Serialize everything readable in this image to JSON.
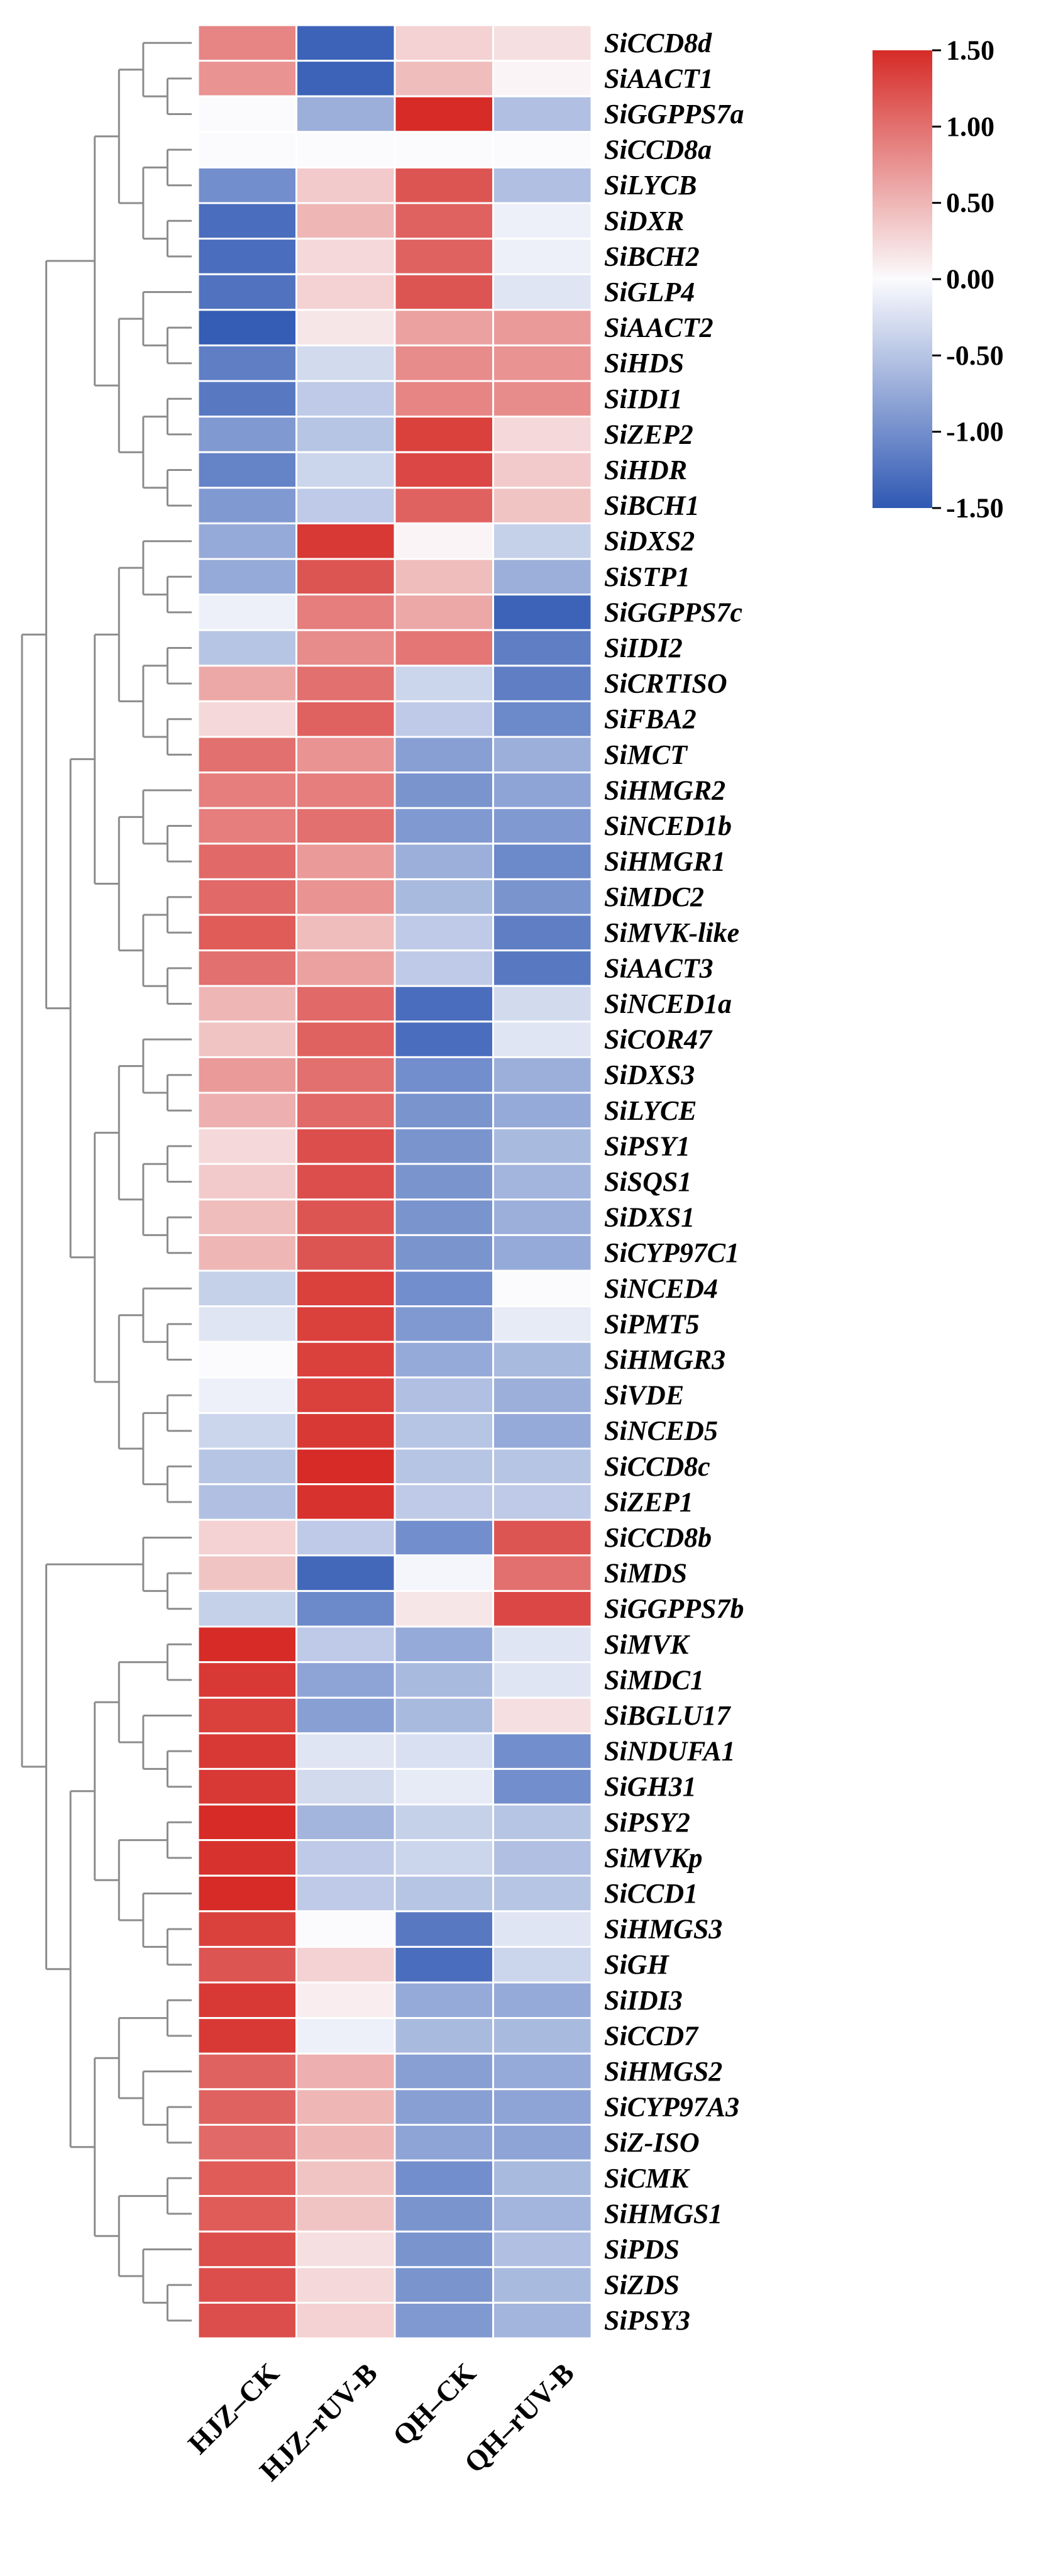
{
  "chart_data": {
    "type": "heatmap",
    "title": "",
    "columns": [
      "HJZ–CK",
      "HJZ–rUV-B",
      "QH–CK",
      "QH–rUV-B"
    ],
    "rows": [
      {
        "gene": "SiCCD8d",
        "values": [
          0.85,
          -1.4,
          0.3,
          0.2
        ]
      },
      {
        "gene": "SiAACT1",
        "values": [
          0.75,
          -1.4,
          0.45,
          0.05
        ]
      },
      {
        "gene": "SiGGPPS7a",
        "values": [
          0.0,
          -0.7,
          1.5,
          -0.55
        ]
      },
      {
        "gene": "SiCCD8a",
        "values": [
          0.0,
          0.0,
          0.0,
          0.0
        ]
      },
      {
        "gene": "SiLYCB",
        "values": [
          -1.0,
          0.35,
          1.2,
          -0.55
        ]
      },
      {
        "gene": "SiDXR",
        "values": [
          -1.3,
          0.5,
          1.1,
          -0.1
        ]
      },
      {
        "gene": "SiBCH2",
        "values": [
          -1.3,
          0.25,
          1.1,
          -0.1
        ]
      },
      {
        "gene": "SiGLP4",
        "values": [
          -1.25,
          0.3,
          1.2,
          -0.2
        ]
      },
      {
        "gene": "SiAACT2",
        "values": [
          -1.45,
          0.15,
          0.65,
          0.7
        ]
      },
      {
        "gene": "SiHDS",
        "values": [
          -1.15,
          -0.3,
          0.8,
          0.75
        ]
      },
      {
        "gene": "SiIDI1",
        "values": [
          -1.2,
          -0.45,
          0.85,
          0.8
        ]
      },
      {
        "gene": "SiZEP2",
        "values": [
          -0.9,
          -0.5,
          1.35,
          0.25
        ]
      },
      {
        "gene": "SiHDR",
        "values": [
          -1.1,
          -0.35,
          1.3,
          0.35
        ]
      },
      {
        "gene": "SiBCH1",
        "values": [
          -0.9,
          -0.45,
          1.1,
          0.4
        ]
      },
      {
        "gene": "SiDXS2",
        "values": [
          -0.75,
          1.4,
          0.05,
          -0.4
        ]
      },
      {
        "gene": "SiSTP1",
        "values": [
          -0.75,
          1.2,
          0.45,
          -0.7
        ]
      },
      {
        "gene": "SiGGPPS7c",
        "values": [
          -0.1,
          0.9,
          0.6,
          -1.4
        ]
      },
      {
        "gene": "SiIDI2",
        "values": [
          -0.5,
          0.8,
          0.95,
          -1.15
        ]
      },
      {
        "gene": "SiCRTISO",
        "values": [
          0.6,
          1.0,
          -0.35,
          -1.15
        ]
      },
      {
        "gene": "SiFBA2",
        "values": [
          0.25,
          1.1,
          -0.45,
          -1.05
        ]
      },
      {
        "gene": "SiMCT",
        "values": [
          1.0,
          0.75,
          -0.85,
          -0.7
        ]
      },
      {
        "gene": "SiHMGR2",
        "values": [
          0.9,
          0.9,
          -0.95,
          -0.8
        ]
      },
      {
        "gene": "SiNCED1b",
        "values": [
          0.9,
          1.0,
          -0.9,
          -0.9
        ]
      },
      {
        "gene": "SiHMGR1",
        "values": [
          1.05,
          0.7,
          -0.7,
          -1.05
        ]
      },
      {
        "gene": "SiMDC2",
        "values": [
          1.05,
          0.75,
          -0.6,
          -0.95
        ]
      },
      {
        "gene": "SiMVK-like",
        "values": [
          1.15,
          0.45,
          -0.45,
          -1.15
        ]
      },
      {
        "gene": "SiAACT3",
        "values": [
          1.0,
          0.65,
          -0.45,
          -1.2
        ]
      },
      {
        "gene": "SiNCED1a",
        "values": [
          0.5,
          1.05,
          -1.3,
          -0.3
        ]
      },
      {
        "gene": "SiCOR47",
        "values": [
          0.4,
          1.1,
          -1.3,
          -0.2
        ]
      },
      {
        "gene": "SiDXS3",
        "values": [
          0.7,
          1.0,
          -1.0,
          -0.7
        ]
      },
      {
        "gene": "SiLYCE",
        "values": [
          0.55,
          1.05,
          -0.95,
          -0.75
        ]
      },
      {
        "gene": "SiPSY1",
        "values": [
          0.25,
          1.25,
          -0.95,
          -0.6
        ]
      },
      {
        "gene": "SiSQS1",
        "values": [
          0.35,
          1.25,
          -0.95,
          -0.65
        ]
      },
      {
        "gene": "SiDXS1",
        "values": [
          0.45,
          1.2,
          -0.95,
          -0.7
        ]
      },
      {
        "gene": "SiCYP97C1",
        "values": [
          0.5,
          1.2,
          -0.95,
          -0.75
        ]
      },
      {
        "gene": "SiNCED4",
        "values": [
          -0.4,
          1.35,
          -1.0,
          0.0
        ]
      },
      {
        "gene": "SiPMT5",
        "values": [
          -0.2,
          1.35,
          -0.9,
          -0.15
        ]
      },
      {
        "gene": "SiHMGR3",
        "values": [
          0.0,
          1.35,
          -0.75,
          -0.6
        ]
      },
      {
        "gene": "SiVDE",
        "values": [
          -0.1,
          1.35,
          -0.55,
          -0.7
        ]
      },
      {
        "gene": "SiNCED5",
        "values": [
          -0.35,
          1.4,
          -0.5,
          -0.75
        ]
      },
      {
        "gene": "SiCCD8c",
        "values": [
          -0.5,
          1.5,
          -0.5,
          -0.5
        ]
      },
      {
        "gene": "SiZEP1",
        "values": [
          -0.55,
          1.45,
          -0.45,
          -0.45
        ]
      },
      {
        "gene": "SiCCD8b",
        "values": [
          0.3,
          -0.45,
          -1.0,
          1.2
        ]
      },
      {
        "gene": "SiMDS",
        "values": [
          0.4,
          -1.35,
          -0.05,
          1.0
        ]
      },
      {
        "gene": "SiGGPPS7b",
        "values": [
          -0.4,
          -1.05,
          0.15,
          1.3
        ]
      },
      {
        "gene": "SiMVK",
        "values": [
          1.5,
          -0.45,
          -0.75,
          -0.2
        ]
      },
      {
        "gene": "SiMDC1",
        "values": [
          1.4,
          -0.8,
          -0.6,
          -0.2
        ]
      },
      {
        "gene": "SiBGLU17",
        "values": [
          1.35,
          -0.85,
          -0.6,
          0.2
        ]
      },
      {
        "gene": "SiNDUFA1",
        "values": [
          1.4,
          -0.2,
          -0.25,
          -1.0
        ]
      },
      {
        "gene": "SiGH31",
        "values": [
          1.4,
          -0.3,
          -0.15,
          -1.0
        ]
      },
      {
        "gene": "SiPSY2",
        "values": [
          1.5,
          -0.65,
          -0.4,
          -0.5
        ]
      },
      {
        "gene": "SiMVKp",
        "values": [
          1.45,
          -0.45,
          -0.35,
          -0.55
        ]
      },
      {
        "gene": "SiCCD1",
        "values": [
          1.5,
          -0.45,
          -0.5,
          -0.5
        ]
      },
      {
        "gene": "SiHMGS3",
        "values": [
          1.35,
          0.0,
          -1.2,
          -0.2
        ]
      },
      {
        "gene": "SiGH",
        "values": [
          1.2,
          0.3,
          -1.3,
          -0.35
        ]
      },
      {
        "gene": "SiIDI3",
        "values": [
          1.4,
          0.1,
          -0.75,
          -0.75
        ]
      },
      {
        "gene": "SiCCD7",
        "values": [
          1.4,
          -0.1,
          -0.6,
          -0.6
        ]
      },
      {
        "gene": "SiHMGS2",
        "values": [
          1.1,
          0.55,
          -0.85,
          -0.75
        ]
      },
      {
        "gene": "SiCYP97A3",
        "values": [
          1.1,
          0.5,
          -0.85,
          -0.8
        ]
      },
      {
        "gene": "SiZ-ISO",
        "values": [
          1.05,
          0.5,
          -0.8,
          -0.8
        ]
      },
      {
        "gene": "SiCMK",
        "values": [
          1.15,
          0.4,
          -1.0,
          -0.6
        ]
      },
      {
        "gene": "SiHMGS1",
        "values": [
          1.15,
          0.4,
          -0.95,
          -0.65
        ]
      },
      {
        "gene": "SiPDS",
        "values": [
          1.25,
          0.2,
          -0.95,
          -0.55
        ]
      },
      {
        "gene": "SiZDS",
        "values": [
          1.25,
          0.25,
          -0.95,
          -0.6
        ]
      },
      {
        "gene": "SiPSY3",
        "values": [
          1.25,
          0.3,
          -0.9,
          -0.65
        ]
      }
    ],
    "color_scale": {
      "min": -1.5,
      "mid": 0.0,
      "max": 1.5,
      "low_color": "#2f58b3",
      "mid_color": "#fbfbfd",
      "high_color": "#d62b27"
    },
    "legend": {
      "position": "top-right",
      "ticks": [
        "1.50",
        "1.00",
        "0.50",
        "0.00",
        "-0.50",
        "-1.00",
        "-1.50"
      ],
      "tick_values": [
        1.5,
        1.0,
        0.5,
        0.0,
        -0.5,
        -1.0,
        -1.5
      ]
    },
    "dendrogram": {
      "side": "left",
      "cluster_sizes": [
        14,
        28,
        3,
        20
      ]
    },
    "xlabel": "",
    "ylabel": ""
  }
}
